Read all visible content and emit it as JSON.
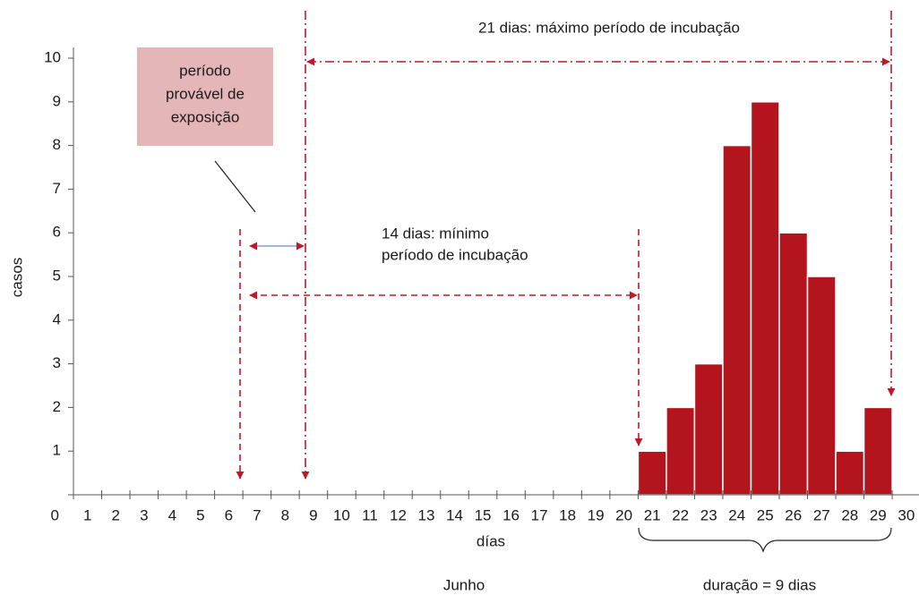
{
  "chart_data": {
    "type": "bar",
    "x_label": "días",
    "y_label": "casos",
    "month_label": "Junho",
    "categories": [
      "1",
      "2",
      "3",
      "4",
      "5",
      "6",
      "7",
      "8",
      "9",
      "10",
      "11",
      "12",
      "13",
      "14",
      "15",
      "16",
      "17",
      "18",
      "19",
      "20",
      "21",
      "22",
      "23",
      "24",
      "25",
      "26",
      "27",
      "28",
      "29",
      "30"
    ],
    "values": [
      0,
      0,
      0,
      0,
      0,
      0,
      0,
      0,
      0,
      0,
      0,
      0,
      0,
      0,
      0,
      0,
      0,
      0,
      0,
      0,
      1,
      2,
      3,
      8,
      9,
      6,
      5,
      1,
      2,
      0
    ],
    "color": "#b3141d",
    "ylim": [
      0,
      10
    ],
    "yticks": [
      0,
      1,
      2,
      3,
      4,
      5,
      6,
      7,
      8,
      9,
      10
    ],
    "annotations": {
      "max_incubation": "21 dias: máximo período de incubação",
      "min_incubation": [
        "14 dias: mínimo",
        "período de incubação"
      ],
      "exposure": [
        "período",
        "provável de",
        "exposição"
      ],
      "duration": "duração = 9 dias"
    }
  }
}
